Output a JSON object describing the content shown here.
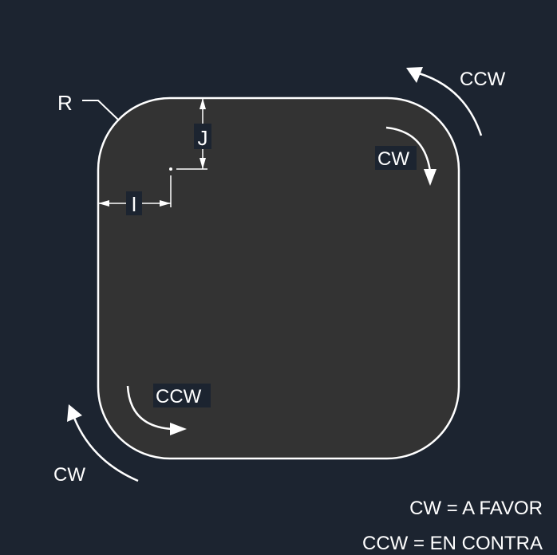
{
  "colors": {
    "background": "#1c2430",
    "panel_fill": "#333333",
    "line": "#ffffff",
    "text": "#ffffff"
  },
  "labels": {
    "radius": "R",
    "j_offset": "J",
    "i_offset": "I",
    "outer_top_right": "CCW",
    "inner_top_right": "CW",
    "inner_bottom_left": "CCW",
    "outer_bottom_left": "CW"
  },
  "legend": {
    "cw": "CW = A FAVOR",
    "ccw": "CCW = EN CONTRA"
  }
}
